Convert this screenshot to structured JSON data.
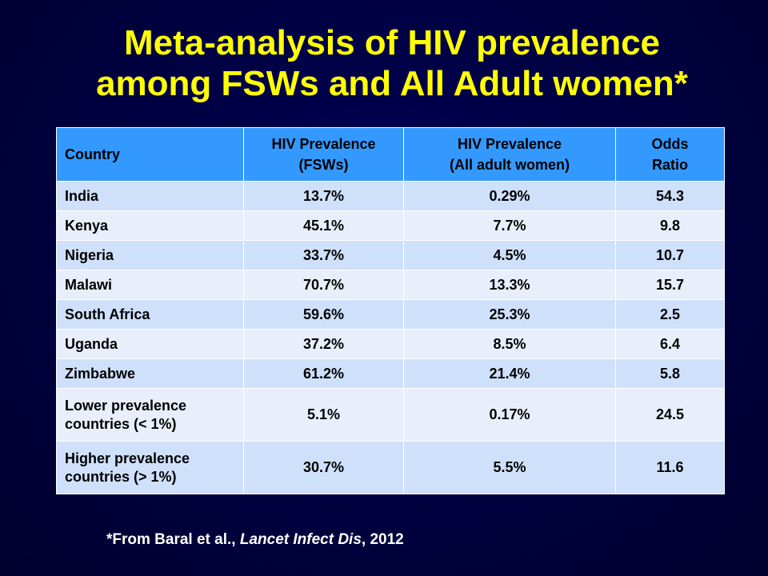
{
  "title": {
    "line1": "Meta-analysis of HIV prevalence",
    "line2": "among FSWs and All Adult women*"
  },
  "table": {
    "headers": {
      "country": "Country",
      "fsw": [
        "HIV Prevalence",
        "(FSWs)"
      ],
      "women": [
        "HIV Prevalence",
        "(All adult women)"
      ],
      "odds": [
        "Odds",
        "Ratio"
      ]
    },
    "rows": [
      {
        "country": [
          "India"
        ],
        "fsw": "13.7%",
        "women": "0.29%",
        "odds": "54.3"
      },
      {
        "country": [
          "Kenya"
        ],
        "fsw": "45.1%",
        "women": "7.7%",
        "odds": "9.8"
      },
      {
        "country": [
          "Nigeria"
        ],
        "fsw": "33.7%",
        "women": "4.5%",
        "odds": "10.7"
      },
      {
        "country": [
          "Malawi"
        ],
        "fsw": "70.7%",
        "women": "13.3%",
        "odds": "15.7"
      },
      {
        "country": [
          "South Africa"
        ],
        "fsw": "59.6%",
        "women": "25.3%",
        "odds": "2.5"
      },
      {
        "country": [
          "Uganda"
        ],
        "fsw": "37.2%",
        "women": "8.5%",
        "odds": "6.4"
      },
      {
        "country": [
          "Zimbabwe"
        ],
        "fsw": "61.2%",
        "women": "21.4%",
        "odds": "5.8"
      },
      {
        "country": [
          "Lower prevalence",
          "countries (< 1%)"
        ],
        "fsw": "5.1%",
        "women": "0.17%",
        "odds": "24.5"
      },
      {
        "country": [
          "Higher prevalence",
          "countries (> 1%)"
        ],
        "fsw": "30.7%",
        "women": "5.5%",
        "odds": "11.6"
      }
    ]
  },
  "footnote": {
    "prefix": "*From Baral et al., ",
    "journal": "Lancet Infect Dis",
    "suffix": ", 2012"
  },
  "colors": {
    "background": "#000048",
    "title": "#ffff00",
    "header_fill": "#3399ff",
    "row_odd_fill": "#cfe0fb",
    "row_even_fill": "#e8effb",
    "footnote_text": "#ffffff"
  }
}
